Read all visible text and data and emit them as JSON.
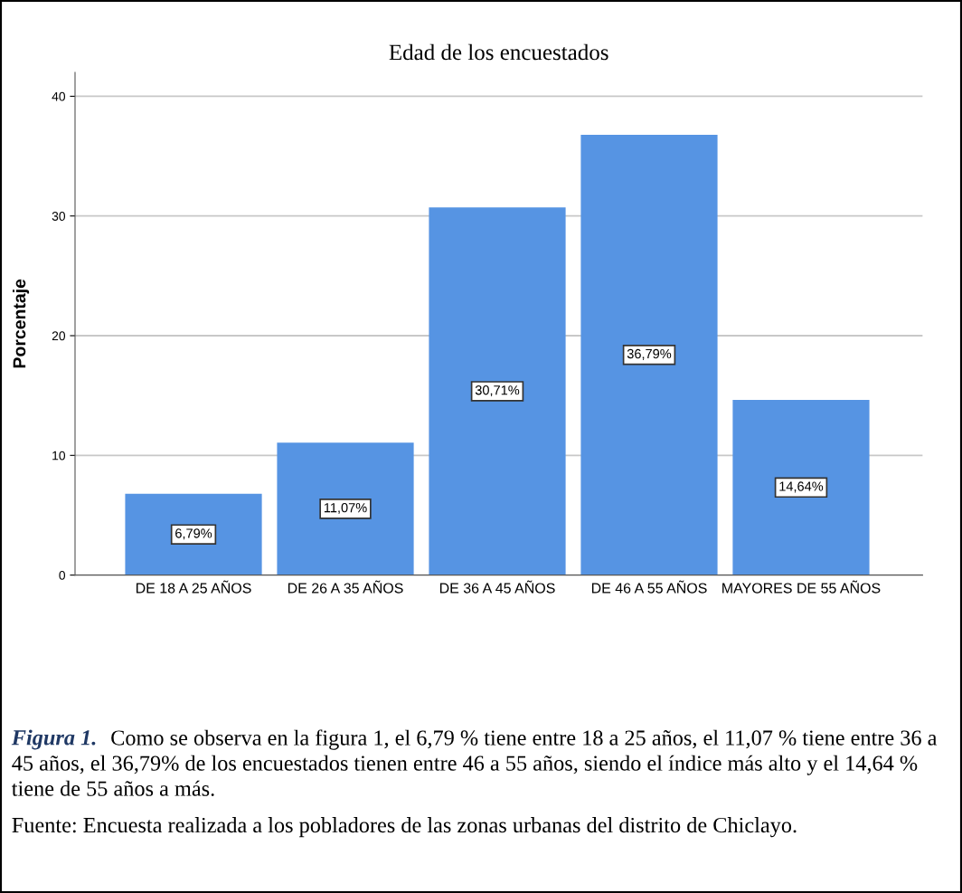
{
  "chart_data": {
    "type": "bar",
    "title": "Edad de los encuestados",
    "ylabel": "Porcentaje",
    "categories": [
      "DE 18 A 25 AÑOS",
      "DE 26 A 35 AÑOS",
      "DE 36 A 45 AÑOS",
      "DE 46 A 55 AÑOS",
      "MAYORES DE 55 AÑOS"
    ],
    "values": [
      6.79,
      11.07,
      30.71,
      36.79,
      14.64
    ],
    "value_labels": [
      "6,79%",
      "11,07%",
      "30,71%",
      "36,79%",
      "14,64%"
    ],
    "color": "#5694e3",
    "ylim": [
      0,
      42
    ],
    "yticks": [
      0,
      10,
      20,
      30,
      40
    ],
    "grid": "y",
    "annotations": [
      "Figura 1.",
      "Como se observa en la figura 1, el 6,79 % tiene entre 18 a 25 años, el 11,07 % tiene entre 36 a 45 años, el 36,79% de los encuestados tienen entre 46 a 55 años, siendo el índice más alto y el 14,64 % tiene de 55 años a más.",
      "Fuente: Encuesta realizada a los pobladores de las zonas urbanas del distrito de Chiclayo."
    ]
  }
}
